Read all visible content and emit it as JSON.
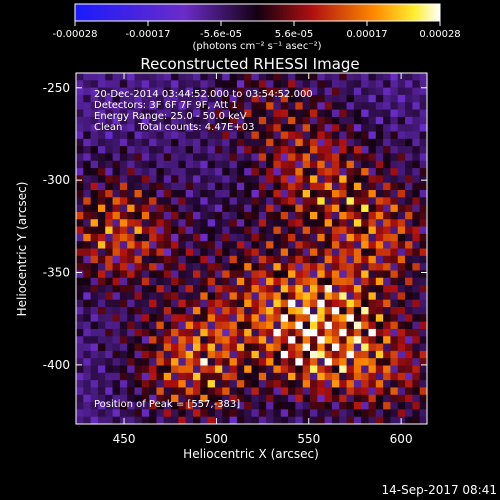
{
  "chart_data": {
    "type": "heatmap",
    "title": "Reconstructed RHESSI Image",
    "xlabel": "Heliocentric X (arcsec)",
    "ylabel": "Heliocentric Y (arcsec)",
    "xlim": [
      424,
      614
    ],
    "ylim": [
      -432,
      -242
    ],
    "xticks": [
      450,
      500,
      550,
      600
    ],
    "yticks": [
      -250,
      -300,
      -350,
      -400
    ],
    "colorbar": {
      "range": [
        -0.00028,
        0.00028
      ],
      "tick_labels": [
        "-0.00028",
        "-0.00017",
        "-5.6e-05",
        "5.6e-05",
        "0.00017",
        "0.00028"
      ],
      "label": "(photons cm⁻² s⁻¹ asec⁻²)"
    },
    "annotations": {
      "time_range": "20-Dec-2014 03:44:52.000 to 03:54:52.000",
      "detectors": "Detectors: 3F 6F 7F 9F, Att 1",
      "energy_range": "Energy Range: 25.0 - 50.0 keV",
      "clean_counts": "Clean     Total counts: 4.47E+03",
      "peak_position": "Position of Peak = [557,-383]"
    },
    "peak": [
      557,
      -383
    ],
    "bright_regions": [
      {
        "x": 557,
        "y": -383,
        "relative_intensity": 1.0
      },
      {
        "x": 448,
        "y": -328,
        "relative_intensity": 0.6
      },
      {
        "x": 488,
        "y": -398,
        "relative_intensity": 0.65
      },
      {
        "x": 590,
        "y": -330,
        "relative_intensity": 0.5
      },
      {
        "x": 555,
        "y": -300,
        "relative_intensity": 0.45
      },
      {
        "x": 520,
        "y": -355,
        "relative_intensity": 0.35
      },
      {
        "x": 530,
        "y": -262,
        "relative_intensity": 0.3
      },
      {
        "x": 600,
        "y": -405,
        "relative_intensity": 0.35
      }
    ]
  },
  "footer": {
    "timestamp": "14-Sep-2017 08:41"
  }
}
